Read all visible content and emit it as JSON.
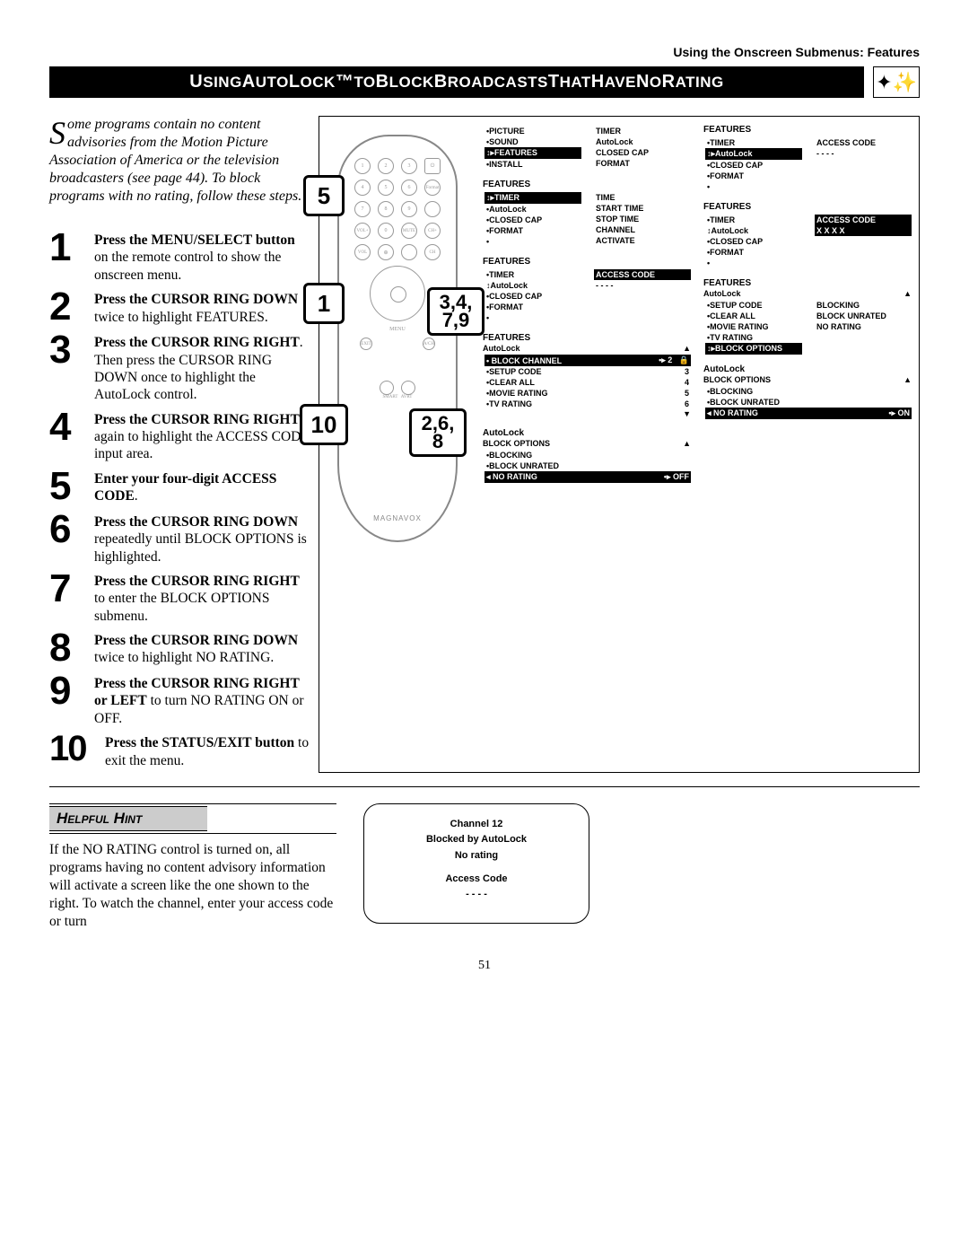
{
  "breadcrumb": "Using the Onscreen Submenus: Features",
  "title": "Using AutoLock™ to Block Broadcasts That Have No Rating",
  "intro_first_letter": "S",
  "intro_rest": "ome programs contain no content advisories from the Motion Picture Association of America or the television broadcasters (see page 44). To block programs with no rating, follow these steps.",
  "steps": [
    {
      "n": "1",
      "b": "Press the MENU/SELECT button",
      "r": " on the remote control to show the onscreen menu."
    },
    {
      "n": "2",
      "b": "Press the CURSOR RING DOWN",
      "r": " twice to highlight FEATURES."
    },
    {
      "n": "3",
      "b": "Press the CURSOR RING RIGHT",
      "r": ". Then press the CURSOR RING DOWN once to highlight the AutoLock control."
    },
    {
      "n": "4",
      "b": "Press the CURSOR RING RIGHT",
      "r": " again to highlight the ACCESS CODE input area."
    },
    {
      "n": "5",
      "b": "Enter your four-digit ACCESS CODE",
      "r": "."
    },
    {
      "n": "6",
      "b": "Press the CURSOR RING DOWN",
      "r": " repeatedly until BLOCK OPTIONS is highlighted."
    },
    {
      "n": "7",
      "b": "Press the CURSOR RING RIGHT",
      "r": " to enter the BLOCK OPTIONS submenu."
    },
    {
      "n": "8",
      "b": "Press the CURSOR RING DOWN",
      "r": " twice to highlight NO RATING."
    },
    {
      "n": "9",
      "b": "Press the CURSOR RING RIGHT or LEFT",
      "r": " to turn NO RATING ON or OFF."
    },
    {
      "n": "10",
      "b": "Press the STATUS/EXIT button",
      "r": " to exit the menu."
    }
  ],
  "callouts": {
    "c1": "1",
    "c5": "5",
    "c10": "10",
    "c34": "3,4,\n7,9",
    "c26": "2,6,\n8"
  },
  "remote_brand": "MAGNAVOX",
  "osd": {
    "box1_left": {
      "items": [
        "PICTURE",
        "SOUND",
        "FEATURES",
        "INSTALL"
      ],
      "hl": 2,
      "right": [
        "TIMER",
        "AutoLock",
        "CLOSED CAP",
        "FORMAT"
      ]
    },
    "box2": {
      "title": "FEATURES",
      "items": [
        [
          "TIMER",
          "TIME"
        ],
        [
          "AutoLock",
          "START TIME"
        ],
        [
          "CLOSED CAP",
          "STOP TIME"
        ],
        [
          "FORMAT",
          "CHANNEL"
        ],
        [
          "",
          "ACTIVATE"
        ]
      ],
      "hl": 0
    },
    "box3": {
      "title": "FEATURES",
      "items": [
        [
          "TIMER",
          "ACCESS CODE"
        ],
        [
          "AutoLock",
          "- - - -"
        ],
        [
          "CLOSED CAP",
          ""
        ],
        [
          "FORMAT",
          ""
        ],
        [
          "",
          ""
        ]
      ],
      "hl": 1
    },
    "box4": {
      "title": "FEATURES",
      "items": [
        "TIMER",
        "AutoLock",
        "CLOSED CAP",
        "FORMAT",
        ""
      ],
      "right_title": "ACCESS CODE",
      "right_val": "- - - -",
      "arrow": 1,
      "hl_right": true
    },
    "box5": {
      "title": "FEATURES",
      "items": [
        "TIMER",
        "AutoLock",
        "CLOSED CAP",
        "FORMAT",
        ""
      ],
      "right_title": "ACCESS CODE",
      "right_val": "X X X X",
      "arrow": 1,
      "hl_right_val": true
    },
    "box6": {
      "title": "FEATURES",
      "sub": "AutoLock",
      "items": [
        [
          "BLOCK CHANNEL",
          "2"
        ],
        [
          "SETUP CODE",
          "3"
        ],
        [
          "CLEAR ALL",
          "4"
        ],
        [
          "MOVIE RATING",
          "5"
        ],
        [
          "TV RATING",
          "6"
        ]
      ],
      "hl": 0,
      "lock": true
    },
    "box7": {
      "title": "FEATURES",
      "sub": "AutoLock",
      "items": [
        [
          "SETUP CODE",
          "BLOCKING"
        ],
        [
          "CLEAR ALL",
          "BLOCK UNRATED"
        ],
        [
          "MOVIE RATING",
          "NO RATING"
        ],
        [
          "TV RATING",
          ""
        ],
        [
          "BLOCK OPTIONS",
          ""
        ]
      ],
      "hl": 4
    },
    "box8": {
      "title": "AutoLock",
      "sub": "BLOCK OPTIONS",
      "items": [
        "BLOCKING",
        "BLOCK UNRATED",
        "NO RATING"
      ],
      "hl": 2,
      "val": "OFF"
    },
    "box9": {
      "title": "AutoLock",
      "sub": "BLOCK OPTIONS",
      "items": [
        "BLOCKING",
        "BLOCK UNRATED",
        "NO RATING"
      ],
      "hl": 2,
      "val": "ON"
    }
  },
  "hint_title": "Helpful Hint",
  "hint_text": "If the NO RATING control is turned on, all programs having no content advisory information will activate a screen like the one shown to the right. To watch the channel, enter your access code or turn",
  "hint_box": {
    "l1": "Channel 12",
    "l2": "Blocked by AutoLock",
    "l3": "No rating",
    "l4": "Access Code",
    "l5": "- - - -"
  },
  "page_number": "51",
  "colors": {
    "black": "#000000",
    "white": "#ffffff",
    "grey": "#cccccc"
  }
}
